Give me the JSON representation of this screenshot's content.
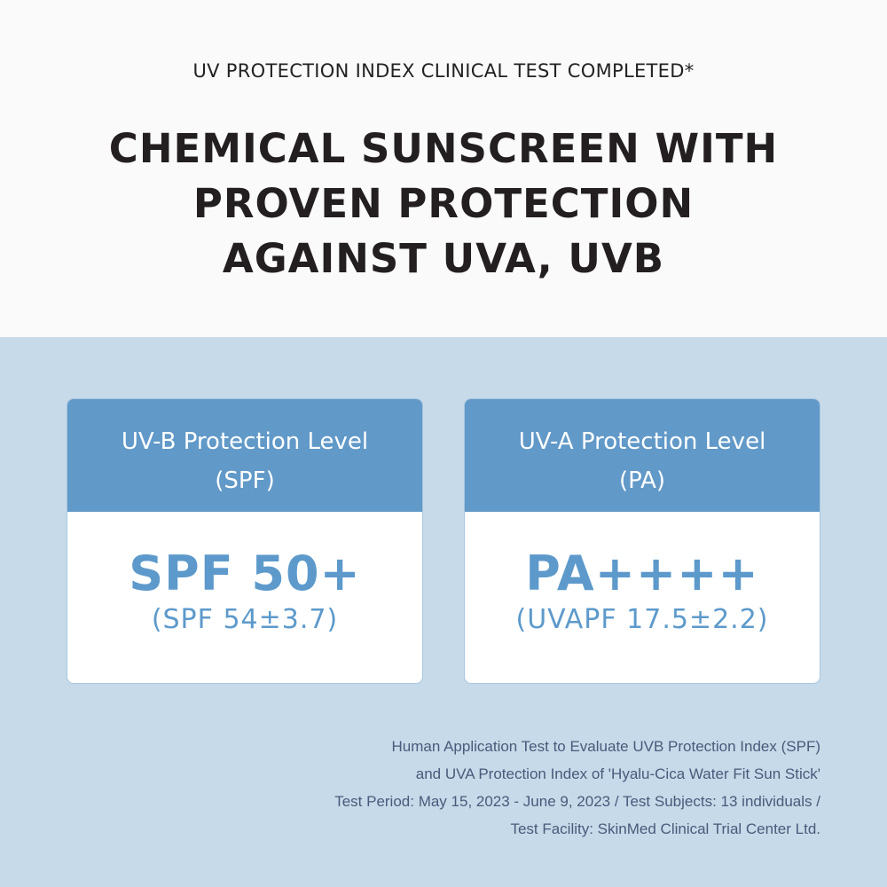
{
  "header": {
    "subtitle": "UV PROTECTION INDEX CLINICAL TEST COMPLETED*",
    "title_lines": [
      "CHEMICAL SUNSCREEN WITH",
      "PROVEN PROTECTION",
      "AGAINST UVA, UVB"
    ]
  },
  "cards": [
    {
      "heading_lines": [
        "UV-B Protection Level",
        "(SPF)"
      ],
      "value": "SPF 50+",
      "detail": "(SPF 54±3.7)"
    },
    {
      "heading_lines": [
        "UV-A Protection Level",
        "(PA)"
      ],
      "value": "PA++++",
      "detail": "(UVAPF 17.5±2.2)"
    }
  ],
  "footnote": [
    "Human Application Test to Evaluate UVB Protection Index (SPF)",
    "and UVA Protection Index of 'Hyalu-Cica Water Fit Sun Stick'",
    "Test Period: May 15, 2023 - June 9, 2023 / Test Subjects: 13 individuals /",
    "Test Facility: SkinMed Clinical Trial Center Ltd."
  ],
  "colors": {
    "accent": "#6199c8",
    "background": "#c6dae9",
    "value_text": "#5d9acb"
  }
}
